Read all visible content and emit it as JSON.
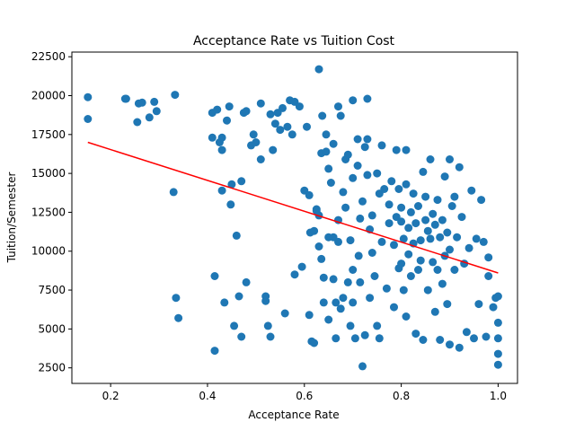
{
  "chart_data": {
    "type": "scatter",
    "title": "Acceptance Rate vs Tuition Cost",
    "xlabel": "Acceptance Rate",
    "ylabel": "Tuition/Semester",
    "xlim": [
      0.12,
      1.04
    ],
    "ylim": [
      1500,
      22800
    ],
    "xticks": [
      0.2,
      0.4,
      0.6,
      0.8,
      1.0
    ],
    "xtick_labels": [
      "0.2",
      "0.4",
      "0.6",
      "0.8",
      "1.0"
    ],
    "yticks": [
      2500,
      5000,
      7500,
      10000,
      12500,
      15000,
      17500,
      20000,
      22500
    ],
    "ytick_labels": [
      "2500",
      "5000",
      "7500",
      "10000",
      "12500",
      "15000",
      "17500",
      "20000",
      "22500"
    ],
    "grid": false,
    "marker_color": "#1f77b4",
    "trendline": {
      "color": "#ff0000",
      "x": [
        0.153,
        1.0
      ],
      "y": [
        17000,
        8600
      ]
    },
    "points": [
      [
        0.153,
        19900
      ],
      [
        0.153,
        18500
      ],
      [
        0.23,
        19800
      ],
      [
        0.232,
        19800
      ],
      [
        0.255,
        18300
      ],
      [
        0.258,
        19500
      ],
      [
        0.265,
        19550
      ],
      [
        0.28,
        18600
      ],
      [
        0.29,
        19600
      ],
      [
        0.295,
        19000
      ],
      [
        0.333,
        20050
      ],
      [
        0.33,
        13800
      ],
      [
        0.335,
        7000
      ],
      [
        0.34,
        5700
      ],
      [
        0.41,
        17300
      ],
      [
        0.41,
        18900
      ],
      [
        0.415,
        3600
      ],
      [
        0.415,
        8400
      ],
      [
        0.42,
        19100
      ],
      [
        0.425,
        17000
      ],
      [
        0.43,
        17300
      ],
      [
        0.43,
        16500
      ],
      [
        0.43,
        13900
      ],
      [
        0.435,
        6700
      ],
      [
        0.44,
        18400
      ],
      [
        0.445,
        19300
      ],
      [
        0.448,
        13000
      ],
      [
        0.45,
        14300
      ],
      [
        0.455,
        5200
      ],
      [
        0.46,
        11000
      ],
      [
        0.465,
        7100
      ],
      [
        0.47,
        4500
      ],
      [
        0.47,
        14500
      ],
      [
        0.475,
        18900
      ],
      [
        0.48,
        19000
      ],
      [
        0.48,
        8000
      ],
      [
        0.49,
        16800
      ],
      [
        0.495,
        17500
      ],
      [
        0.5,
        17000
      ],
      [
        0.51,
        19500
      ],
      [
        0.51,
        15900
      ],
      [
        0.52,
        7100
      ],
      [
        0.52,
        6800
      ],
      [
        0.525,
        5200
      ],
      [
        0.53,
        18800
      ],
      [
        0.53,
        4500
      ],
      [
        0.535,
        16500
      ],
      [
        0.54,
        18200
      ],
      [
        0.545,
        18900
      ],
      [
        0.55,
        17800
      ],
      [
        0.555,
        19200
      ],
      [
        0.56,
        6000
      ],
      [
        0.565,
        18000
      ],
      [
        0.57,
        19700
      ],
      [
        0.575,
        17500
      ],
      [
        0.58,
        19600
      ],
      [
        0.58,
        8500
      ],
      [
        0.59,
        19300
      ],
      [
        0.595,
        9000
      ],
      [
        0.6,
        13900
      ],
      [
        0.605,
        18000
      ],
      [
        0.61,
        13600
      ],
      [
        0.61,
        5900
      ],
      [
        0.612,
        11200
      ],
      [
        0.615,
        4200
      ],
      [
        0.62,
        4100
      ],
      [
        0.62,
        11300
      ],
      [
        0.625,
        12600
      ],
      [
        0.625,
        12700
      ],
      [
        0.63,
        21700
      ],
      [
        0.63,
        12300
      ],
      [
        0.63,
        10300
      ],
      [
        0.635,
        9500
      ],
      [
        0.635,
        16300
      ],
      [
        0.637,
        18700
      ],
      [
        0.64,
        8300
      ],
      [
        0.64,
        6700
      ],
      [
        0.645,
        17500
      ],
      [
        0.645,
        16400
      ],
      [
        0.65,
        5600
      ],
      [
        0.65,
        15300
      ],
      [
        0.65,
        10900
      ],
      [
        0.655,
        14400
      ],
      [
        0.66,
        16900
      ],
      [
        0.66,
        10900
      ],
      [
        0.66,
        8200
      ],
      [
        0.665,
        6700
      ],
      [
        0.665,
        4400
      ],
      [
        0.67,
        19300
      ],
      [
        0.67,
        12000
      ],
      [
        0.67,
        10600
      ],
      [
        0.675,
        18700
      ],
      [
        0.675,
        6300
      ],
      [
        0.68,
        13800
      ],
      [
        0.68,
        7000
      ],
      [
        0.685,
        15900
      ],
      [
        0.685,
        12800
      ],
      [
        0.69,
        16200
      ],
      [
        0.69,
        8000
      ],
      [
        0.695,
        5200
      ],
      [
        0.695,
        10700
      ],
      [
        0.7,
        19700
      ],
      [
        0.7,
        14700
      ],
      [
        0.7,
        8800
      ],
      [
        0.7,
        6700
      ],
      [
        0.705,
        4400
      ],
      [
        0.71,
        17200
      ],
      [
        0.71,
        15500
      ],
      [
        0.712,
        9700
      ],
      [
        0.715,
        12100
      ],
      [
        0.715,
        8000
      ],
      [
        0.72,
        13200
      ],
      [
        0.72,
        2600
      ],
      [
        0.725,
        4600
      ],
      [
        0.725,
        16700
      ],
      [
        0.73,
        19800
      ],
      [
        0.73,
        17200
      ],
      [
        0.73,
        14900
      ],
      [
        0.735,
        11400
      ],
      [
        0.735,
        7000
      ],
      [
        0.74,
        9900
      ],
      [
        0.74,
        12300
      ],
      [
        0.745,
        8400
      ],
      [
        0.75,
        15000
      ],
      [
        0.75,
        5200
      ],
      [
        0.755,
        13700
      ],
      [
        0.755,
        4400
      ],
      [
        0.76,
        10600
      ],
      [
        0.76,
        16800
      ],
      [
        0.765,
        14000
      ],
      [
        0.77,
        7600
      ],
      [
        0.775,
        13000
      ],
      [
        0.775,
        11800
      ],
      [
        0.78,
        14500
      ],
      [
        0.785,
        10400
      ],
      [
        0.785,
        6400
      ],
      [
        0.79,
        16500
      ],
      [
        0.79,
        12200
      ],
      [
        0.795,
        8900
      ],
      [
        0.795,
        14000
      ],
      [
        0.8,
        9200
      ],
      [
        0.8,
        11900
      ],
      [
        0.8,
        12800
      ],
      [
        0.805,
        7500
      ],
      [
        0.805,
        10800
      ],
      [
        0.81,
        5800
      ],
      [
        0.81,
        14300
      ],
      [
        0.81,
        16500
      ],
      [
        0.815,
        9800
      ],
      [
        0.815,
        11500
      ],
      [
        0.82,
        12500
      ],
      [
        0.82,
        8400
      ],
      [
        0.825,
        13700
      ],
      [
        0.825,
        10500
      ],
      [
        0.83,
        4700
      ],
      [
        0.83,
        11800
      ],
      [
        0.835,
        8800
      ],
      [
        0.835,
        12900
      ],
      [
        0.84,
        10700
      ],
      [
        0.84,
        9400
      ],
      [
        0.845,
        15100
      ],
      [
        0.845,
        4300
      ],
      [
        0.85,
        12000
      ],
      [
        0.85,
        13500
      ],
      [
        0.855,
        11300
      ],
      [
        0.855,
        7500
      ],
      [
        0.86,
        10800
      ],
      [
        0.86,
        15900
      ],
      [
        0.865,
        9300
      ],
      [
        0.865,
        12400
      ],
      [
        0.87,
        6100
      ],
      [
        0.87,
        11700
      ],
      [
        0.875,
        8800
      ],
      [
        0.875,
        13300
      ],
      [
        0.88,
        10900
      ],
      [
        0.88,
        4300
      ],
      [
        0.885,
        7900
      ],
      [
        0.885,
        12000
      ],
      [
        0.89,
        9700
      ],
      [
        0.89,
        14800
      ],
      [
        0.895,
        6600
      ],
      [
        0.895,
        11200
      ],
      [
        0.9,
        15900
      ],
      [
        0.9,
        4000
      ],
      [
        0.9,
        10100
      ],
      [
        0.905,
        12900
      ],
      [
        0.91,
        8800
      ],
      [
        0.91,
        13500
      ],
      [
        0.915,
        10900
      ],
      [
        0.92,
        3800
      ],
      [
        0.92,
        15400
      ],
      [
        0.925,
        12200
      ],
      [
        0.93,
        9200
      ],
      [
        0.935,
        4800
      ],
      [
        0.94,
        10200
      ],
      [
        0.945,
        13900
      ],
      [
        0.95,
        4400
      ],
      [
        0.955,
        10800
      ],
      [
        0.96,
        6600
      ],
      [
        0.965,
        13300
      ],
      [
        0.97,
        10600
      ],
      [
        0.975,
        4500
      ],
      [
        0.98,
        8400
      ],
      [
        0.98,
        9600
      ],
      [
        0.99,
        6400
      ],
      [
        0.995,
        7000
      ],
      [
        1.0,
        7100
      ],
      [
        1.0,
        5400
      ],
      [
        1.0,
        4400
      ],
      [
        1.0,
        3400
      ],
      [
        1.0,
        2700
      ]
    ]
  }
}
